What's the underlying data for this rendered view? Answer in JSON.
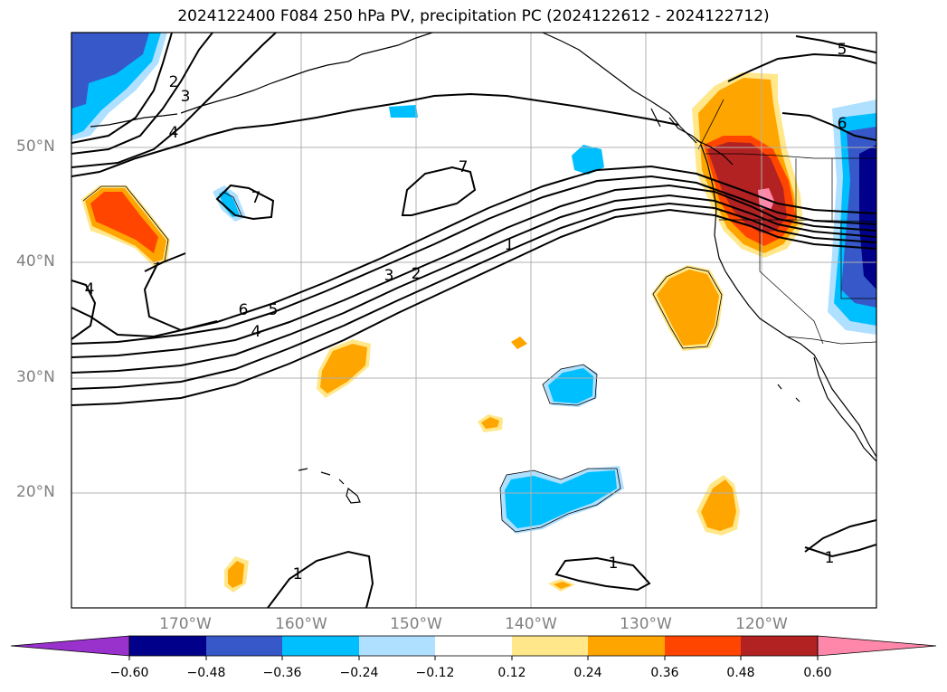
{
  "title": "2024122400 F084 250 hPa PV, precipitation PC (2024122612 - 2024122712)",
  "map": {
    "lon_labels": [
      "170°W",
      "160°W",
      "150°W",
      "140°W",
      "130°W",
      "120°W"
    ],
    "lat_labels": [
      "50°N",
      "40°N",
      "30°N",
      "20°N"
    ],
    "contour_labels": [
      "1",
      "1",
      "1",
      "1",
      "2",
      "2",
      "3",
      "3",
      "4",
      "4",
      "4",
      "5",
      "5",
      "6",
      "6",
      "7",
      "7"
    ]
  },
  "colorbar": {
    "ticks": [
      "−0.60",
      "−0.48",
      "−0.36",
      "−0.24",
      "−0.12",
      "0.12",
      "0.24",
      "0.36",
      "0.48",
      "0.60"
    ],
    "colors": [
      "#9932cc",
      "#00008b",
      "#3658c8",
      "#00bfff",
      "#b0e0ff",
      "#ffffff",
      "#ffe78a",
      "#ffa500",
      "#ff4500",
      "#b22222",
      "#ff88aa"
    ]
  },
  "colors": {
    "grid": "#b0b0b0",
    "coast": "#000000",
    "tick_label": "#808080"
  }
}
